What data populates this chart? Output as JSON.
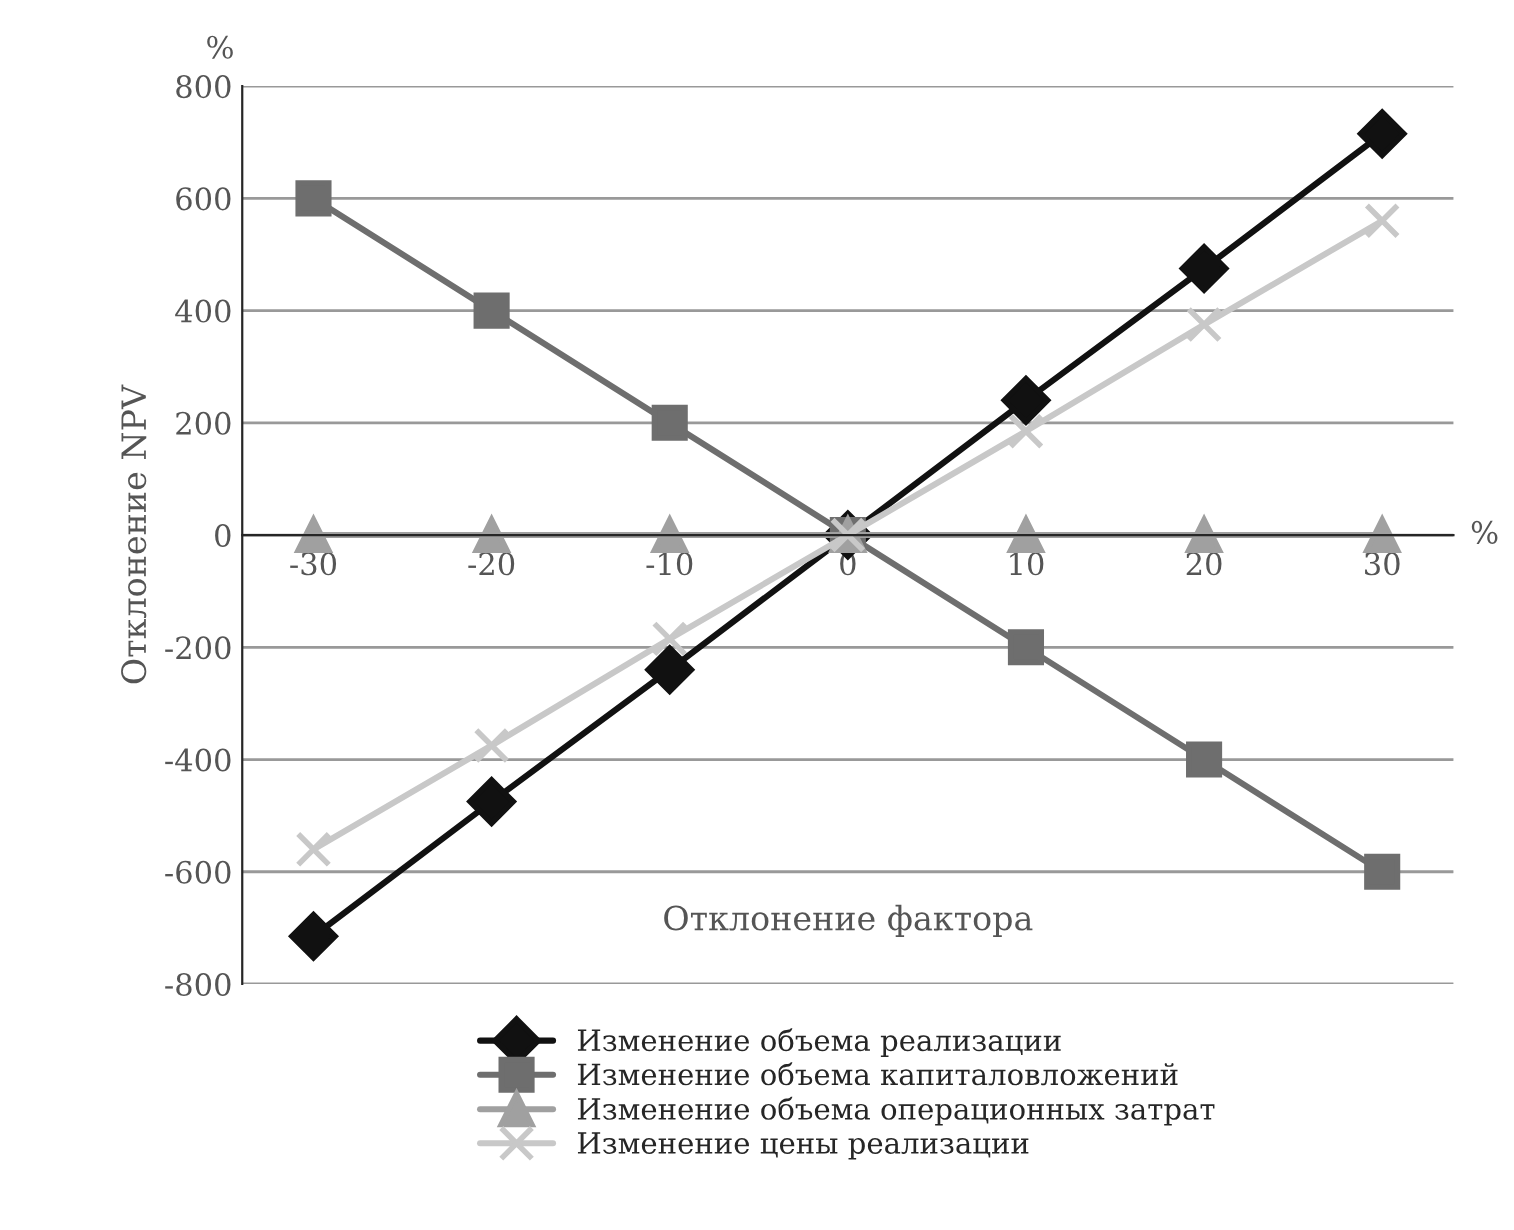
{
  "chart_data": {
    "type": "line",
    "xlabel": "Отклонение фактора",
    "ylabel": "Отклонение NPV",
    "annotations": [
      "%",
      "%"
    ],
    "x": [
      -30,
      -20,
      -10,
      0,
      10,
      20,
      30
    ],
    "xlim": [
      -34,
      34
    ],
    "xticks": [
      -30,
      -20,
      -10,
      0,
      10,
      20,
      30
    ],
    "ylim": [
      -800,
      800
    ],
    "yticks": [
      -800,
      -600,
      -400,
      -200,
      0,
      200,
      400,
      600,
      800
    ],
    "grid": "y",
    "legend": "bottom",
    "line_style": "solid",
    "series": [
      {
        "name": "Изменение объема реализации",
        "color": "#111111",
        "marker": "diamond",
        "values": [
          -715,
          -475,
          -240,
          0,
          240,
          475,
          715
        ]
      },
      {
        "name": "Изменение объема капиталовложений",
        "color": "#6e6e6e",
        "marker": "square",
        "values": [
          600,
          400,
          200,
          0,
          -200,
          -400,
          -600
        ]
      },
      {
        "name": "Изменение объема операционных затрат",
        "color": "#a0a0a0",
        "marker": "triangle",
        "values": [
          0,
          0,
          0,
          0,
          0,
          0,
          0
        ]
      },
      {
        "name": "Изменение цены реализации",
        "color": "#c8c8c8",
        "marker": "cross",
        "values": [
          -560,
          -375,
          -185,
          0,
          185,
          375,
          560
        ]
      }
    ]
  }
}
